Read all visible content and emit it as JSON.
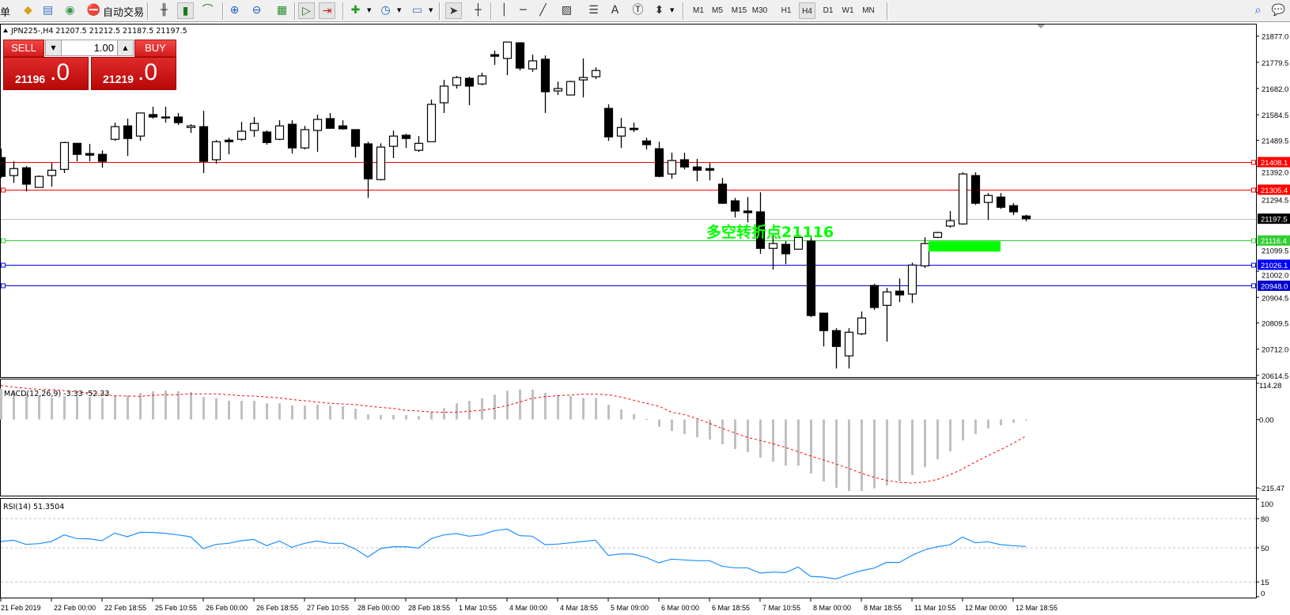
{
  "toolbar": {
    "partial_label": "单",
    "auto_trading_label": "自动交易",
    "icons": [
      "market-watch-icon",
      "navigator-icon",
      "signals-icon",
      "auto-trading-icon",
      "bar-chart-icon",
      "candlestick-chart-icon",
      "line-chart-icon",
      "zoom-in-icon",
      "zoom-out-icon",
      "tile-windows-icon",
      "auto-scroll-icon",
      "chart-shift-icon",
      "new-indicator-icon",
      "periods-clock-icon",
      "templates-icon",
      "cursor-icon",
      "crosshair-icon",
      "vertical-line-icon",
      "horizontal-line-icon",
      "trendline-icon",
      "fibonacci-channel-icon",
      "fibonacci-retracement-icon",
      "text-icon",
      "text-label-icon",
      "arrows-icon",
      "search-icon",
      "chat-icon"
    ],
    "timeframes": [
      "M1",
      "M5",
      "M15",
      "M30",
      "H1",
      "H4",
      "D1",
      "W1",
      "MN"
    ],
    "active_timeframe": "H4"
  },
  "chart": {
    "header": "JPN225-,H4  21207.5 21212.5 21187.5 21197.5",
    "price_axis_ticks": [
      "21877.0",
      "21779.5",
      "21682.0",
      "21584.5",
      "21489.5",
      "21392.0",
      "21294.5",
      "21099.5",
      "21002.0",
      "20904.5",
      "20809.5",
      "20712.0",
      "20614.5"
    ],
    "time_labels": [
      "21 Feb 2019",
      "22 Feb 00:00",
      "22 Feb 18:55",
      "25 Feb 10:55",
      "26 Feb 00:00",
      "26 Feb 18:55",
      "27 Feb 10:55",
      "28 Feb 00:00",
      "28 Feb 18:55",
      "1 Mar 10:55",
      "4 Mar 00:00",
      "4 Mar 18:55",
      "5 Mar 09:00",
      "6 Mar 00:00",
      "6 Mar 18:55",
      "7 Mar 10:55",
      "8 Mar 00:00",
      "8 Mar 18:55",
      "11 Mar 10:55",
      "12 Mar 00:00",
      "12 Mar 18:55"
    ],
    "horizontal_lines": [
      {
        "price": 21408.1,
        "label": "21408.1",
        "color": "#ff0000",
        "text_color": "#ffffff"
      },
      {
        "price": 21305.4,
        "label": "21305.4",
        "color": "#ff0000",
        "text_color": "#ffffff"
      },
      {
        "price": 21197.5,
        "label": "21197.5",
        "color": "#c0c0c0",
        "label_bg": "#000000",
        "text_color": "#ffffff",
        "current_price": true
      },
      {
        "price": 21116.4,
        "label": "21116.4",
        "color": "#32cd32",
        "text_color": "#ffffff"
      },
      {
        "price": 21026.1,
        "label": "21026.1",
        "color": "#0000ff",
        "text_color": "#ffffff"
      },
      {
        "price": 20948.0,
        "label": "20948.0",
        "color": "#0000cd",
        "text_color": "#ffffff"
      }
    ],
    "annotation": {
      "text": "多空转折点21116",
      "color": "#00ff00"
    },
    "highlight_zone": {
      "price_top": 21116.4,
      "price_bottom": 21078,
      "color": "#00ff00"
    }
  },
  "trade_panel": {
    "sell_label": "SELL",
    "buy_label": "BUY",
    "lot_value": "1.00",
    "sell_price_main": "21196",
    "sell_price_frac": ".0",
    "buy_price_main": "21219",
    "buy_price_frac": ".0",
    "color": "#d41c1c"
  },
  "macd": {
    "label": "MACD(12,26,9) -3.33 -52.33",
    "ticks": [
      "114.28",
      "0.00",
      "-215.47"
    ]
  },
  "rsi": {
    "label": "RSI(14) 51.3504",
    "ticks": [
      "100",
      "80",
      "50",
      "15",
      "0"
    ]
  },
  "chart_data": [
    {
      "type": "candlestick",
      "symbol": "JPN225-",
      "timeframe": "H4",
      "ylim": [
        20614.5,
        21877.0
      ],
      "bull_color": "#ffffff",
      "bear_color": "#000000",
      "ohlc": [
        [
          21425,
          21458,
          21349,
          21355
        ],
        [
          21358,
          21411,
          21331,
          21384
        ],
        [
          21387,
          21393,
          21299,
          21326
        ],
        [
          21314,
          21358,
          21314,
          21355
        ],
        [
          21358,
          21405,
          21317,
          21378
        ],
        [
          21381,
          21484,
          21367,
          21481
        ],
        [
          21478,
          21478,
          21411,
          21437
        ],
        [
          21440,
          21476,
          21411,
          21434
        ],
        [
          21437,
          21452,
          21387,
          21411
        ],
        [
          21493,
          21555,
          21487,
          21540
        ],
        [
          21543,
          21570,
          21431,
          21496
        ],
        [
          21505,
          21591,
          21487,
          21591
        ],
        [
          21585,
          21614,
          21570,
          21576
        ],
        [
          21573,
          21614,
          21555,
          21576
        ],
        [
          21576,
          21591,
          21546,
          21555
        ],
        [
          21537,
          21549,
          21517,
          21543
        ],
        [
          21540,
          21599,
          21367,
          21411
        ],
        [
          21417,
          21490,
          21402,
          21484
        ],
        [
          21490,
          21499,
          21437,
          21484
        ],
        [
          21493,
          21558,
          21487,
          21523
        ],
        [
          21526,
          21576,
          21502,
          21552
        ],
        [
          21520,
          21526,
          21473,
          21481
        ],
        [
          21493,
          21564,
          21490,
          21543
        ],
        [
          21549,
          21564,
          21440,
          21461
        ],
        [
          21461,
          21543,
          21455,
          21529
        ],
        [
          21526,
          21585,
          21446,
          21567
        ],
        [
          21570,
          21591,
          21532,
          21534
        ],
        [
          21543,
          21564,
          21529,
          21532
        ],
        [
          21529,
          21529,
          21425,
          21467
        ],
        [
          21476,
          21484,
          21275,
          21346
        ],
        [
          21343,
          21478,
          21340,
          21464
        ],
        [
          21467,
          21526,
          21423,
          21505
        ],
        [
          21508,
          21514,
          21461,
          21496
        ],
        [
          21452,
          21505,
          21446,
          21478
        ],
        [
          21484,
          21641,
          21484,
          21623
        ],
        [
          21629,
          21714,
          21591,
          21691
        ],
        [
          21694,
          21729,
          21682,
          21723
        ],
        [
          21720,
          21726,
          21620,
          21691
        ],
        [
          21699,
          21741,
          21694,
          21729
        ],
        [
          21808,
          21823,
          21770,
          21802
        ],
        [
          21794,
          21855,
          21732,
          21855
        ],
        [
          21852,
          21855,
          21749,
          21758
        ],
        [
          21755,
          21808,
          21744,
          21785
        ],
        [
          21791,
          21805,
          21591,
          21670
        ],
        [
          21673,
          21708,
          21658,
          21682
        ],
        [
          21658,
          21711,
          21658,
          21708
        ],
        [
          21714,
          21794,
          21649,
          21723
        ],
        [
          21726,
          21761,
          21717,
          21749
        ],
        [
          21608,
          21623,
          21487,
          21502
        ],
        [
          21505,
          21573,
          21461,
          21537
        ],
        [
          21534,
          21555,
          21520,
          21529
        ],
        [
          21487,
          21499,
          21455,
          21473
        ],
        [
          21458,
          21484,
          21352,
          21355
        ],
        [
          21364,
          21443,
          21346,
          21414
        ],
        [
          21417,
          21443,
          21381,
          21390
        ],
        [
          21390,
          21420,
          21337,
          21378
        ],
        [
          21384,
          21405,
          21340,
          21378
        ],
        [
          21326,
          21349,
          21252,
          21255
        ],
        [
          21264,
          21275,
          21202,
          21226
        ],
        [
          21226,
          21278,
          21184,
          21220
        ],
        [
          21223,
          21296,
          21067,
          21087
        ],
        [
          21087,
          21137,
          21008,
          21105
        ],
        [
          21102,
          21114,
          21028,
          21067
        ],
        [
          21084,
          21128,
          21084,
          21128
        ],
        [
          21114,
          21128,
          20831,
          20837
        ],
        [
          20846,
          20846,
          20722,
          20781
        ],
        [
          20781,
          20790,
          20640,
          20722
        ],
        [
          20687,
          20790,
          20640,
          20775
        ],
        [
          20769,
          20852,
          20764,
          20828
        ],
        [
          20949,
          20955,
          20858,
          20867
        ],
        [
          20875,
          20940,
          20740,
          20925
        ],
        [
          20928,
          20975,
          20887,
          20914
        ],
        [
          20917,
          21034,
          20884,
          21025
        ],
        [
          21022,
          21128,
          21014,
          21105
        ],
        [
          21128,
          21149,
          21125,
          21146
        ],
        [
          21170,
          21226,
          21164,
          21190
        ],
        [
          21178,
          21370,
          21175,
          21364
        ],
        [
          21358,
          21370,
          21249,
          21255
        ],
        [
          21258,
          21293,
          21193,
          21284
        ],
        [
          21278,
          21293,
          21234,
          21240
        ],
        [
          21246,
          21255,
          21211,
          21223
        ],
        [
          21207.5,
          21212.5,
          21187.5,
          21197.5
        ]
      ]
    },
    {
      "type": "bar",
      "indicator": "MACD(12,26,9)",
      "ylim": [
        -215.47,
        114.28
      ],
      "histogram_color": "#c0c0c0",
      "signal_color": "#ff0000",
      "histogram": [
        98,
        92,
        81,
        74,
        68,
        74,
        74,
        71,
        68,
        74,
        76,
        84,
        89,
        91,
        89,
        86,
        71,
        67,
        59,
        59,
        59,
        51,
        51,
        44,
        44,
        47,
        44,
        42,
        34,
        16,
        14,
        14,
        14,
        11,
        24,
        36,
        51,
        59,
        67,
        79,
        91,
        94,
        94,
        84,
        75,
        74,
        68,
        68,
        46,
        32,
        17,
        2,
        -23,
        -36,
        -46,
        -56,
        -63,
        -78,
        -93,
        -103,
        -120,
        -133,
        -145,
        -145,
        -170,
        -195,
        -215,
        -225,
        -225,
        -217,
        -207,
        -195,
        -175,
        -150,
        -125,
        -100,
        -66,
        -46,
        -28,
        -18,
        -11,
        -3.33
      ],
      "signal": [
        107,
        102,
        98,
        95,
        94,
        91,
        87,
        84,
        79,
        75,
        74,
        73,
        76,
        78,
        78,
        81,
        81,
        81,
        78,
        75,
        74,
        71,
        68,
        63,
        59,
        55,
        51,
        49,
        47,
        42,
        38,
        35,
        29,
        27,
        24,
        23,
        23,
        26,
        29,
        35,
        44,
        55,
        67,
        72,
        75,
        77,
        80,
        80,
        78,
        71,
        61,
        51,
        42,
        23,
        16,
        3,
        -12,
        -28,
        -42,
        -56,
        -66,
        -76,
        -88,
        -101,
        -115,
        -127,
        -140,
        -154,
        -169,
        -182,
        -192,
        -198,
        -200,
        -197,
        -189,
        -174,
        -156,
        -134,
        -114,
        -95,
        -75,
        -52.33
      ]
    },
    {
      "type": "line",
      "indicator": "RSI(14)",
      "ylim": [
        0,
        100
      ],
      "levels": [
        80,
        50,
        15
      ],
      "color": "#1e90ff",
      "values": [
        56.5,
        57.8,
        53.5,
        54.3,
        56.5,
        63.2,
        59.5,
        59.2,
        57.3,
        65.1,
        61.3,
        65.9,
        65.7,
        64.9,
        63.2,
        61.3,
        49.2,
        53.5,
        54.6,
        57.3,
        58.6,
        52.2,
        57.0,
        50.5,
        54.6,
        57.0,
        54.6,
        54.6,
        48.9,
        40.6,
        49.2,
        51.1,
        51.1,
        49.7,
        59.2,
        63.2,
        64.6,
        61.9,
        63.2,
        67.6,
        69.2,
        62.5,
        61.9,
        53.2,
        53.8,
        55.1,
        56.5,
        57.8,
        42.2,
        43.8,
        43.5,
        40.0,
        34.6,
        38.4,
        37.6,
        36.8,
        36.8,
        31.1,
        29.5,
        29.5,
        24.1,
        25.1,
        24.6,
        30.3,
        20.8,
        20.0,
        18.1,
        22.7,
        26.5,
        29.2,
        35.1,
        34.9,
        42.2,
        47.8,
        51.1,
        53.0,
        61.1,
        55.1,
        56.2,
        53.2,
        52.2,
        51.35
      ]
    }
  ]
}
